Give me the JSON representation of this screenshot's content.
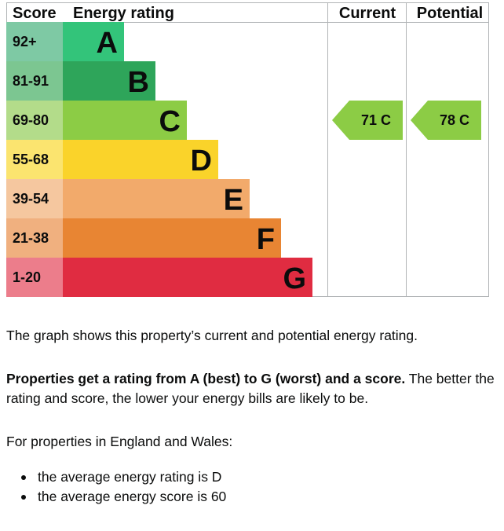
{
  "chart_data": {
    "type": "table",
    "headers": {
      "score": "Score",
      "rating": "Energy rating",
      "current": "Current",
      "potential": "Potential"
    },
    "bands": [
      {
        "letter": "A",
        "range": "92+",
        "color": "#33c47a",
        "score_color": "#7ec9a4"
      },
      {
        "letter": "B",
        "range": "81-91",
        "color": "#2ea55a",
        "score_color": "#7cc691"
      },
      {
        "letter": "C",
        "range": "69-80",
        "color": "#8ccc45",
        "score_color": "#b3dc8a"
      },
      {
        "letter": "D",
        "range": "55-68",
        "color": "#fad32a",
        "score_color": "#fbe46f"
      },
      {
        "letter": "E",
        "range": "39-54",
        "color": "#f2aa6b",
        "score_color": "#f5c79f"
      },
      {
        "letter": "F",
        "range": "21-38",
        "color": "#e88533",
        "score_color": "#f0b07f"
      },
      {
        "letter": "G",
        "range": "1-20",
        "color": "#e02c41",
        "score_color": "#ec7d8b"
      }
    ],
    "current": {
      "score": 71,
      "band": "C",
      "label": "71  C",
      "color": "#8ccc45"
    },
    "potential": {
      "score": 78,
      "band": "C",
      "label": "78  C",
      "color": "#8ccc45"
    }
  },
  "text": {
    "intro": "The graph shows this property’s current and potential energy rating.",
    "bold_lead": "Properties get a rating from A (best) to G (worst) and a score.",
    "rest": " The better the rating and score, the lower your energy bills are likely to be.",
    "region": "For properties in England and Wales:",
    "bullets": [
      "the average energy rating is D",
      "the average energy score is 60"
    ]
  }
}
